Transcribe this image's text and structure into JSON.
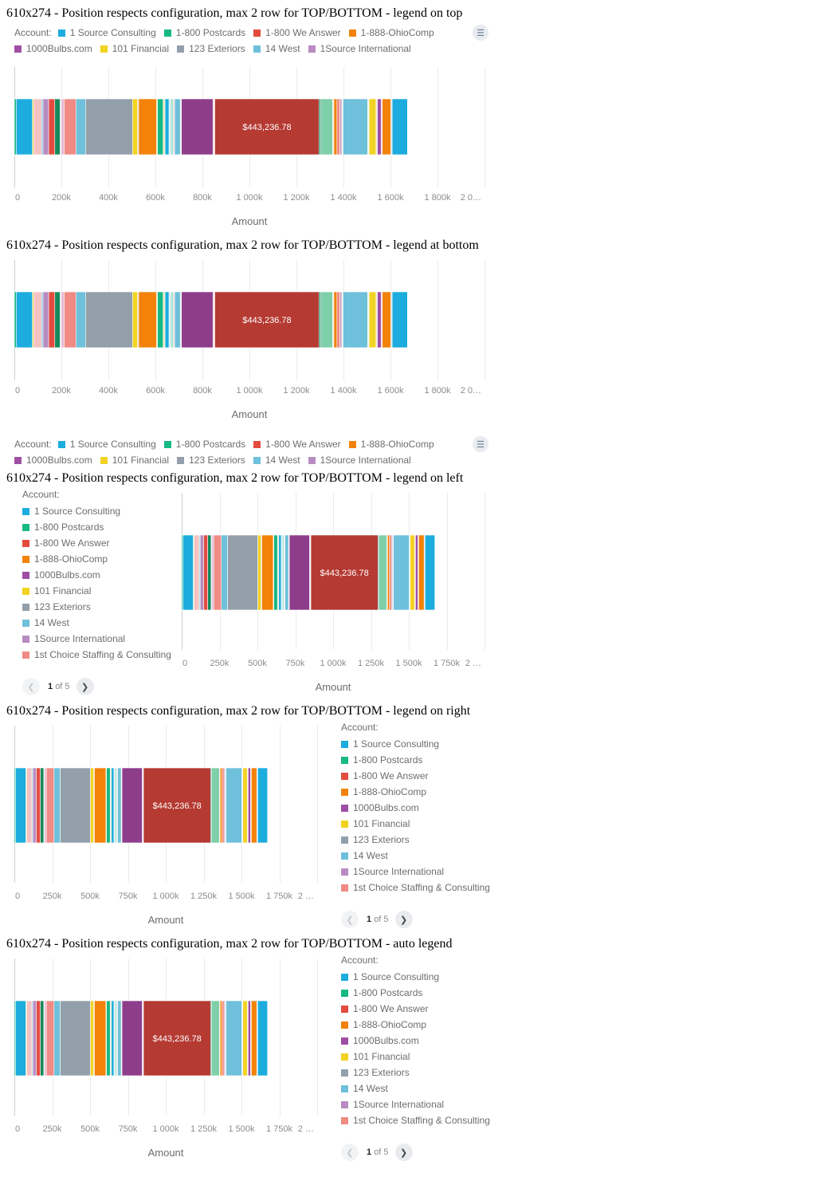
{
  "legend": {
    "caption": "Account:",
    "items": [
      {
        "label": "1 Source Consulting",
        "color": "#1cacde"
      },
      {
        "label": "1-800 Postcards",
        "color": "#16b985"
      },
      {
        "label": "1-800 We Answer",
        "color": "#e34b3f"
      },
      {
        "label": "1-888-OhioComp",
        "color": "#f2820a"
      },
      {
        "label": "1000Bulbs.com",
        "color": "#9e4fa4"
      },
      {
        "label": "101 Financial",
        "color": "#f2d321"
      },
      {
        "label": "123 Exteriors",
        "color": "#939fab"
      },
      {
        "label": "14 West",
        "color": "#6ec0db"
      },
      {
        "label": "1Source International",
        "color": "#b88cc0"
      },
      {
        "label": "1st Choice Staffing & Consulting",
        "color": "#ef8b84"
      }
    ],
    "toggle_icon": "list-icon"
  },
  "pager": {
    "current": "1",
    "of_text": "of 5"
  },
  "sections": [
    {
      "title": "610x274 - Position respects configuration, max 2 row for TOP/BOTTOM - legend on top"
    },
    {
      "title": "610x274 - Position respects configuration, max 2 row for TOP/BOTTOM - legend at bottom"
    },
    {
      "title": "610x274 - Position respects configuration, max 2 row for TOP/BOTTOM - legend on left"
    },
    {
      "title": "610x274 - Position respects configuration, max 2 row for TOP/BOTTOM - legend on right"
    },
    {
      "title": "610x274 - Position respects configuration, max 2 row for TOP/BOTTOM - auto legend"
    }
  ],
  "chart_data": {
    "type": "bar",
    "orientation": "horizontal",
    "stacked": true,
    "xlabel": "Amount",
    "ylabel": "",
    "grid": true,
    "data_label": "$443,236.78",
    "data_label_segment": 28,
    "tick_sets": {
      "wide": {
        "values": [
          0,
          200000,
          400000,
          600000,
          800000,
          1000000,
          1200000,
          1400000,
          1600000,
          1800000,
          2000000
        ],
        "labels": [
          "0",
          "200k",
          "400k",
          "600k",
          "800k",
          "1 000k",
          "1 200k",
          "1 400k",
          "1 600k",
          "1 800k",
          "2 0…"
        ]
      },
      "narrow": {
        "values": [
          0,
          250000,
          500000,
          750000,
          1000000,
          1250000,
          1500000,
          1750000,
          2000000
        ],
        "labels": [
          "0",
          "250k",
          "500k",
          "750k",
          "1 000k",
          "1 250k",
          "1 500k",
          "1 750k",
          "2 …"
        ]
      }
    },
    "segments": [
      {
        "value": 8000,
        "color": "#16b985"
      },
      {
        "value": 69000,
        "color": "#1cacde"
      },
      {
        "value": 5000,
        "color": "#f2d321"
      },
      {
        "value": 34000,
        "color": "#f5c2c2"
      },
      {
        "value": 6000,
        "color": "#6ec0db"
      },
      {
        "value": 24000,
        "color": "#b88cc0"
      },
      {
        "value": 26000,
        "color": "#e34b3f"
      },
      {
        "value": 23000,
        "color": "#178a5c"
      },
      {
        "value": 5000,
        "color": "#d7dde4"
      },
      {
        "value": 12000,
        "color": "#e8b4d0"
      },
      {
        "value": 50000,
        "color": "#ef8b84"
      },
      {
        "value": 41000,
        "color": "#6ec0db"
      },
      {
        "value": 200000,
        "color": "#939fab"
      },
      {
        "value": 21000,
        "color": "#f2d321"
      },
      {
        "value": 5000,
        "color": "#d9cca0"
      },
      {
        "value": 76000,
        "color": "#f2820a"
      },
      {
        "value": 4000,
        "color": "#f5d76e"
      },
      {
        "value": 24000,
        "color": "#16b985"
      },
      {
        "value": 8000,
        "color": "#f0e2b6"
      },
      {
        "value": 17000,
        "color": "#1cacde"
      },
      {
        "value": 7000,
        "color": "#cde9f2"
      },
      {
        "value": 12000,
        "color": "#a7e3cf"
      },
      {
        "value": 5000,
        "color": "#f5c9d5"
      },
      {
        "value": 24000,
        "color": "#6ec0db"
      },
      {
        "value": 5000,
        "color": "#e5e5e5"
      },
      {
        "value": 134000,
        "color": "#8e3d8b"
      },
      {
        "value": 4000,
        "color": "#e7d3ec"
      },
      {
        "value": 4000,
        "color": "#f2a5a0"
      },
      {
        "value": 443236.78,
        "color": "#b53a32"
      },
      {
        "value": 7000,
        "color": "#1c8a66"
      },
      {
        "value": 51000,
        "color": "#7fcfa9"
      },
      {
        "value": 5000,
        "color": "#f5efd2"
      },
      {
        "value": 13000,
        "color": "#f2820a"
      },
      {
        "value": 13000,
        "color": "#ef8b84"
      },
      {
        "value": 8000,
        "color": "#c79ec0"
      },
      {
        "value": 5000,
        "color": "#e3eef2"
      },
      {
        "value": 105000,
        "color": "#6ec0db"
      },
      {
        "value": 6000,
        "color": "#e8f0f3"
      },
      {
        "value": 29000,
        "color": "#f2d321"
      },
      {
        "value": 6000,
        "color": "#f0ecd9"
      },
      {
        "value": 16000,
        "color": "#9e4fa4"
      },
      {
        "value": 5000,
        "color": "#f2c0cf"
      },
      {
        "value": 36000,
        "color": "#f2820a"
      },
      {
        "value": 6000,
        "color": "#c6d6dc"
      },
      {
        "value": 65000,
        "color": "#1cacde"
      }
    ]
  }
}
